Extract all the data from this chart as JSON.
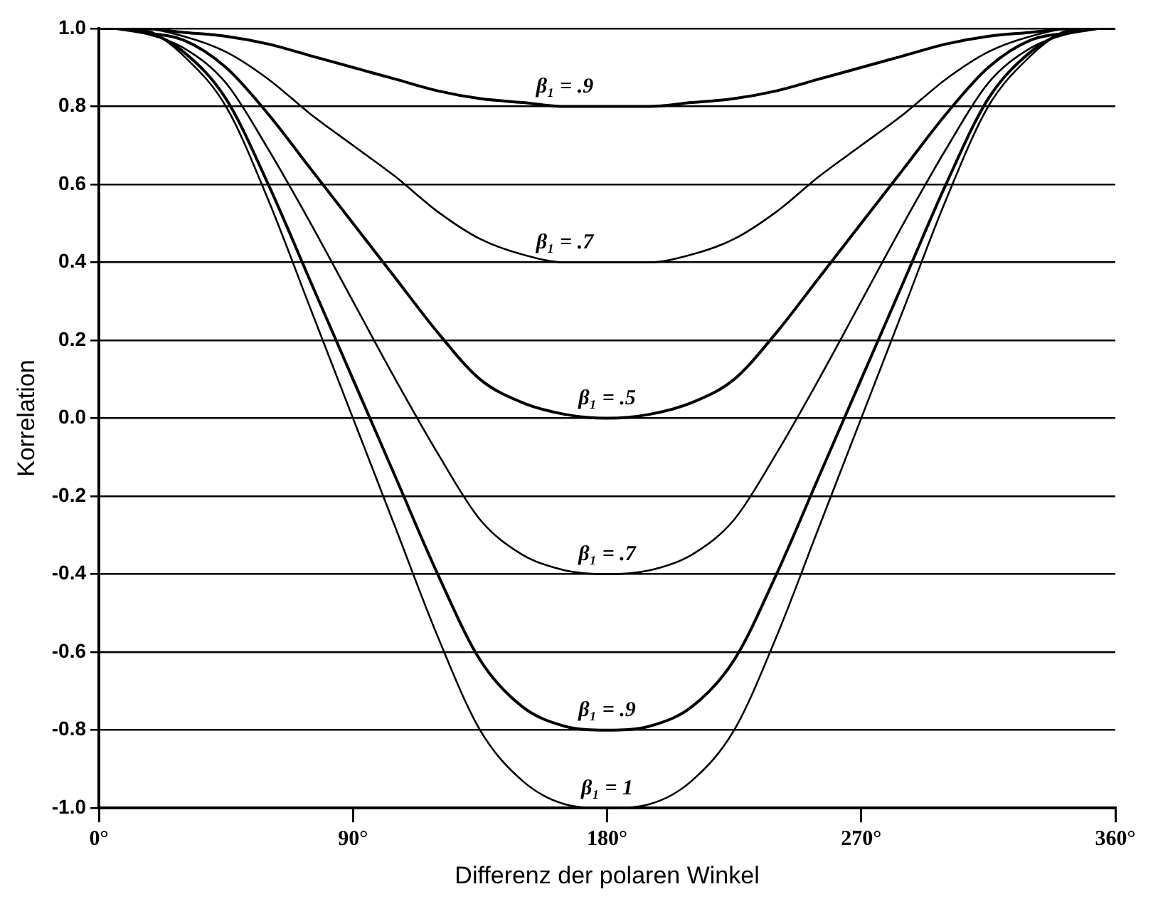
{
  "chart_data": {
    "type": "line",
    "xlabel": "Differenz der polaren Winkel",
    "ylabel": "Korrelation",
    "x": [
      0,
      15,
      30,
      45,
      60,
      75,
      90,
      105,
      120,
      135,
      150,
      165,
      180,
      195,
      210,
      225,
      240,
      255,
      270,
      285,
      300,
      315,
      330,
      345,
      360
    ],
    "series": [
      {
        "name": "β₁ = .9",
        "color": "#000000",
        "values": [
          1,
          1,
          0.99,
          0.98,
          0.96,
          0.93,
          0.9,
          0.87,
          0.84,
          0.82,
          0.81,
          0.8,
          0.8,
          0.8,
          0.81,
          0.82,
          0.84,
          0.87,
          0.9,
          0.93,
          0.96,
          0.98,
          0.99,
          1,
          1
        ]
      },
      {
        "name": "β₁ = .7",
        "color": "#000000",
        "x": [
          3,
          15,
          30,
          45,
          60,
          75,
          90,
          105,
          120,
          135,
          150,
          165,
          180,
          195,
          210,
          225,
          240,
          255,
          270,
          285,
          300,
          315,
          330,
          345,
          357
        ],
        "values": [
          1,
          1,
          0.98,
          0.94,
          0.87,
          0.78,
          0.7,
          0.62,
          0.53,
          0.46,
          0.42,
          0.4,
          0.4,
          0.4,
          0.42,
          0.46,
          0.53,
          0.62,
          0.7,
          0.78,
          0.87,
          0.94,
          0.98,
          1,
          1
        ]
      },
      {
        "name": "β₁ = .5",
        "color": "#000000",
        "x": [
          6,
          15,
          30,
          45,
          60,
          75,
          90,
          105,
          120,
          135,
          150,
          165,
          180,
          195,
          210,
          225,
          240,
          255,
          270,
          285,
          300,
          315,
          330,
          345,
          354
        ],
        "values": [
          1,
          0.99,
          0.97,
          0.9,
          0.78,
          0.64,
          0.5,
          0.36,
          0.22,
          0.1,
          0.04,
          0.01,
          0,
          0.01,
          0.04,
          0.1,
          0.22,
          0.36,
          0.5,
          0.64,
          0.78,
          0.9,
          0.97,
          0.99,
          1
        ]
      },
      {
        "name": "β₁ = .7",
        "color": "#000000",
        "x": [
          9,
          15,
          30,
          45,
          60,
          75,
          90,
          105,
          120,
          135,
          150,
          165,
          180,
          195,
          210,
          225,
          240,
          255,
          270,
          285,
          300,
          315,
          330,
          345,
          351
        ],
        "values": [
          1,
          0.99,
          0.95,
          0.86,
          0.69,
          0.5,
          0.3,
          0.1,
          -0.09,
          -0.26,
          -0.35,
          -0.39,
          -0.4,
          -0.39,
          -0.35,
          -0.26,
          -0.09,
          0.1,
          0.3,
          0.5,
          0.69,
          0.86,
          0.95,
          0.99,
          1
        ]
      },
      {
        "name": "β₁ = .9",
        "color": "#000000",
        "x": [
          12,
          18,
          30,
          45,
          60,
          75,
          90,
          105,
          120,
          135,
          150,
          165,
          180,
          195,
          210,
          225,
          240,
          255,
          270,
          285,
          300,
          315,
          330,
          342,
          348
        ],
        "values": [
          1,
          0.99,
          0.94,
          0.82,
          0.6,
          0.35,
          0.1,
          -0.15,
          -0.4,
          -0.62,
          -0.74,
          -0.79,
          -0.8,
          -0.79,
          -0.74,
          -0.62,
          -0.4,
          -0.15,
          0.1,
          0.35,
          0.6,
          0.82,
          0.94,
          0.99,
          1
        ]
      },
      {
        "name": "β₁ = 1",
        "color": "#000000",
        "x": [
          14,
          19,
          30,
          45,
          60,
          75,
          90,
          105,
          120,
          135,
          150,
          165,
          180,
          195,
          210,
          225,
          240,
          255,
          270,
          285,
          300,
          315,
          330,
          341,
          346
        ],
        "values": [
          1,
          0.99,
          0.93,
          0.8,
          0.56,
          0.28,
          0,
          -0.28,
          -0.56,
          -0.8,
          -0.93,
          -0.99,
          -1,
          -0.99,
          -0.93,
          -0.8,
          -0.56,
          -0.28,
          0,
          0.28,
          0.56,
          0.8,
          0.93,
          0.99,
          1
        ]
      }
    ],
    "xlim": [
      0,
      360
    ],
    "xticks": [
      {
        "value": 0,
        "label": "0°"
      },
      {
        "value": 90,
        "label": "90°"
      },
      {
        "value": 180,
        "label": "180°"
      },
      {
        "value": 270,
        "label": "270°"
      },
      {
        "value": 360,
        "label": "360°"
      }
    ],
    "ylim": [
      -1,
      1
    ],
    "yticks": [
      {
        "value": -1,
        "label": "-1.0"
      },
      {
        "value": -0.8,
        "label": "-0.8"
      },
      {
        "value": -0.6,
        "label": "-0.6"
      },
      {
        "value": -0.4,
        "label": "-0.4"
      },
      {
        "value": -0.2,
        "label": "-0.2"
      },
      {
        "value": 0,
        "label": "0.0"
      },
      {
        "value": 0.2,
        "label": "0.2"
      },
      {
        "value": 0.4,
        "label": "0.4"
      },
      {
        "value": 0.6,
        "label": "0.6"
      },
      {
        "value": 0.8,
        "label": "0.8"
      },
      {
        "value": 1,
        "label": "1.0"
      }
    ],
    "grid": "y",
    "marker": "none",
    "line_style": "solid",
    "legend": false
  }
}
